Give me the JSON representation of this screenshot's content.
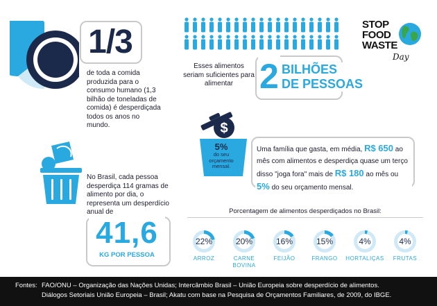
{
  "fraction": {
    "value": "1/3",
    "text": "de toda a comida produzida para o consumo humano (1,3 bilhão de toneladas de comida) é desperdiçada todos os anos no mundo."
  },
  "people": {
    "intro": "Esses alimentos seriam suficientes para alimentar",
    "amount": "2",
    "unit_line1": "BILHÕES",
    "unit_line2": "DE PESSOAS"
  },
  "logo": {
    "line1": "STOP",
    "line2": "FOOD",
    "line3": "WASTE",
    "line4": "Day"
  },
  "budget": {
    "badge_pct": "5%",
    "badge_text": "do seu orçamento mensal.",
    "text_a": "Uma família que gasta, em média,",
    "value_a": "R$ 650",
    "text_b": "ao mês com alimentos e desperdiça quase um terço disso \"joga fora\" mais de",
    "value_b": "R$ 180",
    "text_c": "ao mês ou",
    "value_c": "5%",
    "text_d": "do seu orçamento mensal."
  },
  "brazil": {
    "text": "No Brasil, cada pessoa desperdiça 114 gramas de alimento por dia, o representa um desperdício anual de",
    "amount": "41,6",
    "unit": "KG POR PESSOA"
  },
  "percent_section": {
    "title": "Porcentagem de alimentos desperdiçados no Brasil:",
    "items": [
      {
        "pct": "22%",
        "label": "ARROZ",
        "value": 22
      },
      {
        "pct": "20%",
        "label": "CARNE BOVINA",
        "value": 20
      },
      {
        "pct": "16%",
        "label": "FEIJÃO",
        "value": 16
      },
      {
        "pct": "15%",
        "label": "FRANGO",
        "value": 15
      },
      {
        "pct": "4%",
        "label": "HORTALIÇAS",
        "value": 4
      },
      {
        "pct": "4%",
        "label": "FRUTAS",
        "value": 4
      }
    ]
  },
  "footer": {
    "label": "Fontes:",
    "line1": "FAO/ONU – Organização das Nações Unidas; Intercâmbio Brasil – União Europeia sobre desperdício de alimentos.",
    "line2": "Diálogos Setoriais União Europeia – Brasil; Akatu com base na Pesquisa de Orçamentos Familiares, de 2009, do IBGE."
  },
  "colors": {
    "navy": "#1b2a4a",
    "blue": "#2aa8e0",
    "light_blue": "#cfe9f7",
    "footer_bg": "#111111"
  }
}
